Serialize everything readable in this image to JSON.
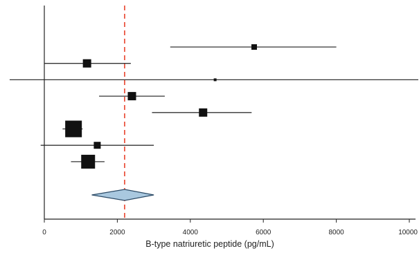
{
  "chart_data": {
    "type": "forest",
    "xlabel": "B-type natriuretic peptide (pg/mL)",
    "xlim": [
      0,
      10000
    ],
    "xticks": [
      "0",
      "2000",
      "4000",
      "6000",
      "8000",
      "10000"
    ],
    "xtick_values": [
      0,
      2000,
      4000,
      6000,
      8000,
      10000
    ],
    "reference_line": {
      "x": 2200,
      "style": "dashed",
      "color": "#e8412a"
    },
    "studies": [
      {
        "estimate": 5750,
        "lower": 3450,
        "upper": 8000,
        "weight": 2
      },
      {
        "estimate": 1170,
        "lower": 0,
        "upper": 2370,
        "weight": 3
      },
      {
        "estimate": 4680,
        "lower": -950,
        "upper": 10250,
        "weight": 1
      },
      {
        "estimate": 2400,
        "lower": 1500,
        "upper": 3300,
        "weight": 3
      },
      {
        "estimate": 4350,
        "lower": 2950,
        "upper": 5680,
        "weight": 3
      },
      {
        "estimate": 800,
        "lower": 500,
        "upper": 1050,
        "weight": 6
      },
      {
        "estimate": 1450,
        "lower": -100,
        "upper": 3000,
        "weight": 2.5
      },
      {
        "estimate": 1200,
        "lower": 730,
        "upper": 1650,
        "weight": 5
      }
    ],
    "pooled": {
      "estimate": 2200,
      "lower": 1300,
      "upper": 3000,
      "fill": "#a9c8df",
      "stroke": "#2b4a66"
    }
  }
}
